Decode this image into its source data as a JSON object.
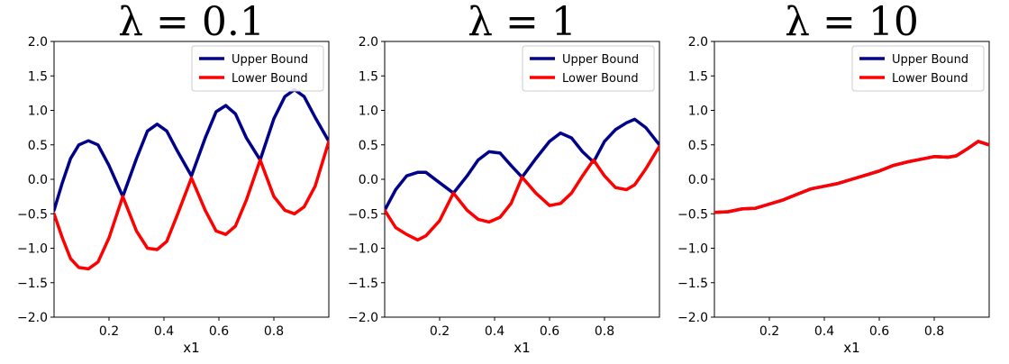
{
  "chart_data": [
    {
      "type": "line",
      "title": "λ = 0.1",
      "xlabel": "x1",
      "ylabel": "",
      "xlim": [
        0.0,
        1.0
      ],
      "ylim": [
        -2.0,
        2.0
      ],
      "xticks": [
        "0.2",
        "0.4",
        "0.6",
        "0.8"
      ],
      "yticks": [
        "2.0",
        "1.5",
        "1.0",
        "0.5",
        "0.0",
        "−0.5",
        "−1.0",
        "−1.5",
        "−2.0"
      ],
      "legend_position": "top-right",
      "series": [
        {
          "name": "Upper Bound",
          "color": "#00008b",
          "x": [
            0.0,
            0.03,
            0.06,
            0.09,
            0.125,
            0.16,
            0.2,
            0.25,
            0.3,
            0.34,
            0.375,
            0.41,
            0.45,
            0.5,
            0.55,
            0.59,
            0.625,
            0.66,
            0.7,
            0.75,
            0.8,
            0.84,
            0.875,
            0.91,
            0.95,
            1.0
          ],
          "y": [
            -0.45,
            -0.05,
            0.3,
            0.5,
            0.56,
            0.5,
            0.2,
            -0.25,
            0.3,
            0.7,
            0.8,
            0.7,
            0.4,
            0.05,
            0.6,
            0.98,
            1.07,
            0.95,
            0.6,
            0.28,
            0.88,
            1.2,
            1.3,
            1.2,
            0.9,
            0.55
          ]
        },
        {
          "name": "Lower Bound",
          "color": "#ff0000",
          "x": [
            0.0,
            0.03,
            0.06,
            0.09,
            0.125,
            0.16,
            0.2,
            0.25,
            0.3,
            0.34,
            0.375,
            0.41,
            0.45,
            0.5,
            0.55,
            0.59,
            0.625,
            0.66,
            0.7,
            0.75,
            0.8,
            0.84,
            0.875,
            0.91,
            0.95,
            1.0
          ],
          "y": [
            -0.5,
            -0.85,
            -1.15,
            -1.28,
            -1.3,
            -1.2,
            -0.85,
            -0.25,
            -0.75,
            -1.0,
            -1.02,
            -0.9,
            -0.5,
            0.02,
            -0.45,
            -0.75,
            -0.8,
            -0.68,
            -0.3,
            0.28,
            -0.25,
            -0.45,
            -0.5,
            -0.4,
            -0.1,
            0.55
          ]
        }
      ]
    },
    {
      "type": "line",
      "title": "λ = 1",
      "xlabel": "x1",
      "ylabel": "",
      "xlim": [
        0.0,
        1.0
      ],
      "ylim": [
        -2.0,
        2.0
      ],
      "xticks": [
        "0.2",
        "0.4",
        "0.6",
        "0.8"
      ],
      "yticks": [
        "2.0",
        "1.5",
        "1.0",
        "0.5",
        "0.0",
        "−0.5",
        "−1.0",
        "−1.5",
        "−2.0"
      ],
      "legend_position": "top-right",
      "series": [
        {
          "name": "Upper Bound",
          "color": "#00008b",
          "x": [
            0.0,
            0.04,
            0.08,
            0.12,
            0.15,
            0.2,
            0.25,
            0.3,
            0.34,
            0.38,
            0.42,
            0.46,
            0.5,
            0.55,
            0.6,
            0.64,
            0.68,
            0.72,
            0.76,
            0.8,
            0.84,
            0.88,
            0.91,
            0.95,
            1.0
          ],
          "y": [
            -0.45,
            -0.15,
            0.05,
            0.1,
            0.1,
            -0.05,
            -0.2,
            0.05,
            0.28,
            0.4,
            0.38,
            0.2,
            0.03,
            0.3,
            0.55,
            0.67,
            0.6,
            0.4,
            0.25,
            0.55,
            0.72,
            0.82,
            0.87,
            0.75,
            0.5
          ]
        },
        {
          "name": "Lower Bound",
          "color": "#ff0000",
          "x": [
            0.0,
            0.04,
            0.08,
            0.12,
            0.15,
            0.2,
            0.25,
            0.3,
            0.34,
            0.38,
            0.42,
            0.46,
            0.5,
            0.55,
            0.6,
            0.64,
            0.68,
            0.72,
            0.76,
            0.8,
            0.84,
            0.88,
            0.91,
            0.95,
            1.0
          ],
          "y": [
            -0.45,
            -0.7,
            -0.8,
            -0.88,
            -0.82,
            -0.6,
            -0.2,
            -0.45,
            -0.58,
            -0.62,
            -0.55,
            -0.35,
            0.03,
            -0.2,
            -0.38,
            -0.35,
            -0.2,
            0.05,
            0.28,
            0.05,
            -0.12,
            -0.15,
            -0.08,
            0.15,
            0.48
          ]
        }
      ]
    },
    {
      "type": "line",
      "title": "λ = 10",
      "xlabel": "x1",
      "ylabel": "",
      "xlim": [
        0.0,
        1.0
      ],
      "ylim": [
        -2.0,
        2.0
      ],
      "xticks": [
        "0.2",
        "0.4",
        "0.6",
        "0.8"
      ],
      "yticks": [
        "2.0",
        "1.5",
        "1.0",
        "0.5",
        "0.0",
        "−0.5",
        "−1.0",
        "−1.5",
        "−2.0"
      ],
      "legend_position": "top-right",
      "series": [
        {
          "name": "Upper Bound",
          "color": "#00008b",
          "x": [
            0.0,
            0.05,
            0.1,
            0.15,
            0.2,
            0.25,
            0.3,
            0.35,
            0.4,
            0.45,
            0.5,
            0.55,
            0.6,
            0.65,
            0.7,
            0.75,
            0.8,
            0.85,
            0.88,
            0.92,
            0.96,
            1.0
          ],
          "y": [
            -0.48,
            -0.47,
            -0.43,
            -0.42,
            -0.36,
            -0.3,
            -0.22,
            -0.14,
            -0.1,
            -0.06,
            0.0,
            0.06,
            0.12,
            0.2,
            0.25,
            0.29,
            0.33,
            0.32,
            0.34,
            0.44,
            0.55,
            0.5
          ]
        },
        {
          "name": "Lower Bound",
          "color": "#ff0000",
          "x": [
            0.0,
            0.05,
            0.1,
            0.15,
            0.2,
            0.25,
            0.3,
            0.35,
            0.4,
            0.45,
            0.5,
            0.55,
            0.6,
            0.65,
            0.7,
            0.75,
            0.8,
            0.85,
            0.88,
            0.92,
            0.96,
            1.0
          ],
          "y": [
            -0.48,
            -0.47,
            -0.43,
            -0.42,
            -0.36,
            -0.3,
            -0.22,
            -0.14,
            -0.1,
            -0.06,
            0.0,
            0.06,
            0.12,
            0.2,
            0.25,
            0.29,
            0.33,
            0.32,
            0.34,
            0.44,
            0.55,
            0.5
          ]
        }
      ]
    }
  ]
}
